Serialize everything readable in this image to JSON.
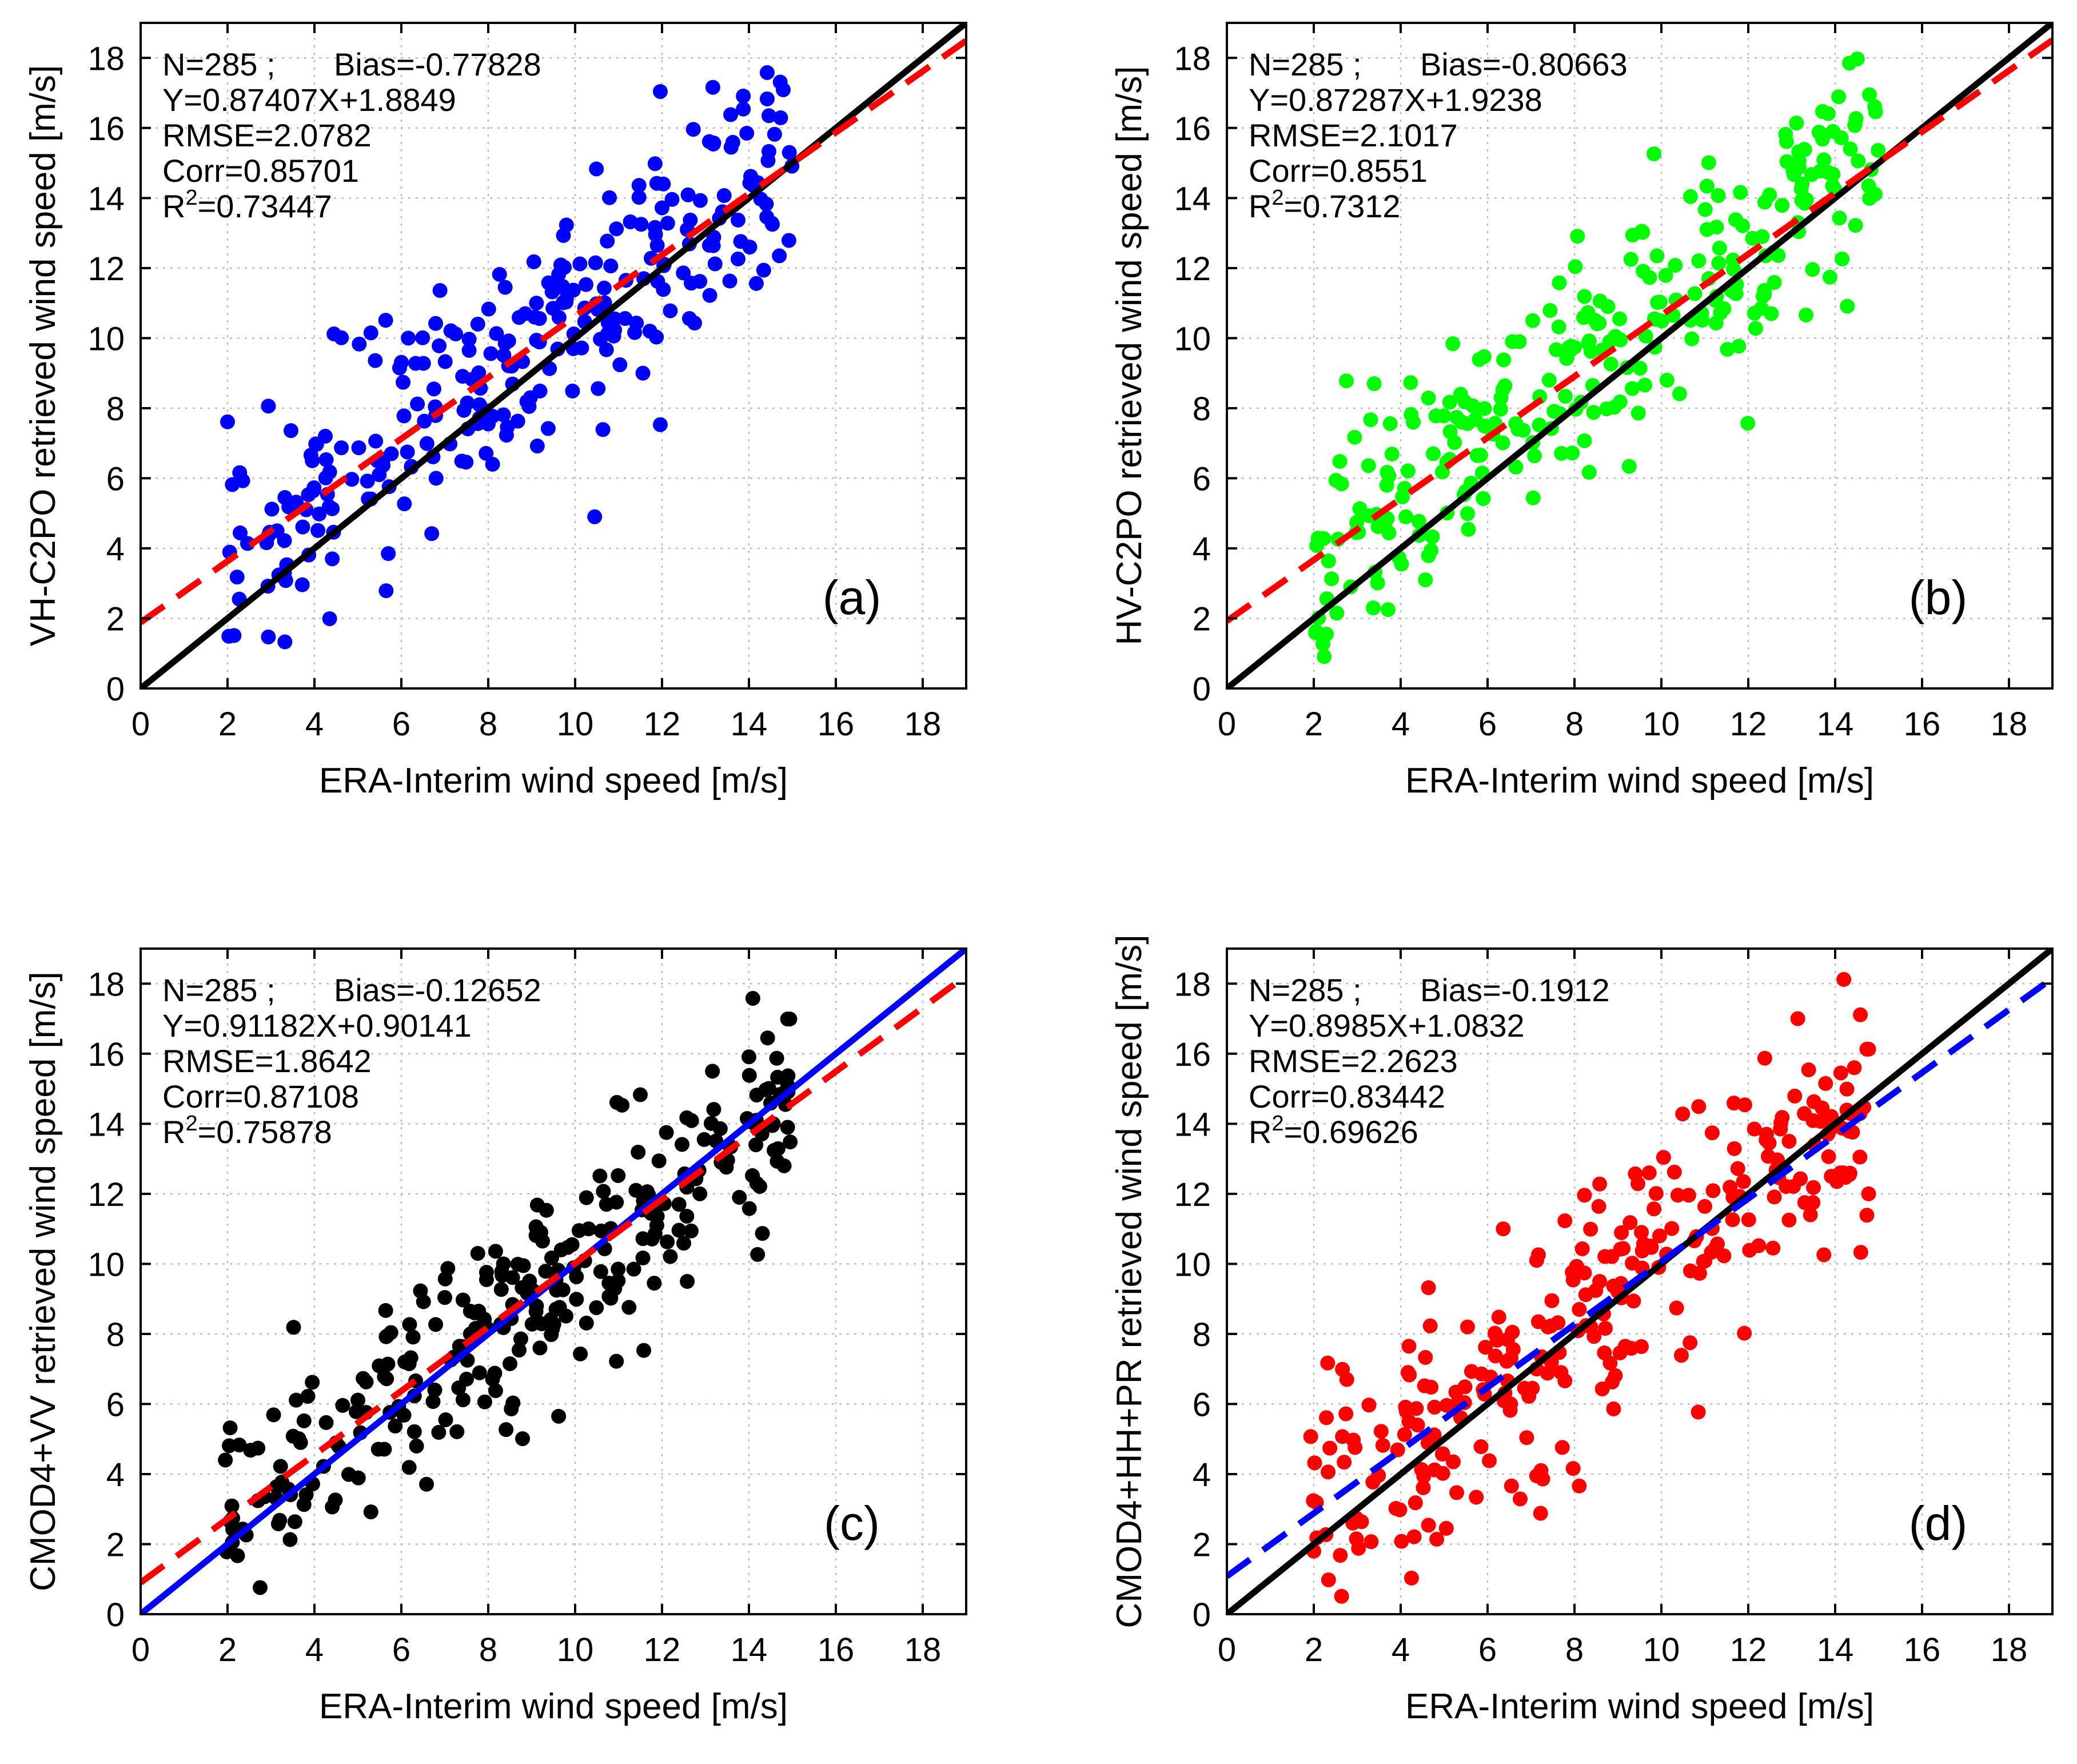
{
  "figure": {
    "background": "#ffffff"
  },
  "chart_data": [
    {
      "id": "a",
      "type": "scatter",
      "panel_label": "(a)",
      "xlabel": "ERA-Interim wind speed [m/s]",
      "ylabel": "VH-C2PO retrieved wind speed [m/s]",
      "xlim": [
        0,
        19
      ],
      "ylim": [
        0,
        19
      ],
      "xticks": [
        0,
        2,
        4,
        6,
        8,
        10,
        12,
        14,
        16,
        18
      ],
      "yticks": [
        0,
        2,
        4,
        6,
        8,
        10,
        12,
        14,
        16,
        18
      ],
      "grid": true,
      "point_color": "#0000ff",
      "one_to_one_color": "#000000",
      "fit_line_color": "#ff0000",
      "fit": {
        "slope": 0.87407,
        "intercept": 1.8849
      },
      "stats": {
        "n": "N=285 ;",
        "bias": "Bias=-0.77828",
        "equation": "Y=0.87407X+1.8849",
        "rmse": "RMSE=2.0782",
        "corr": "Corr=0.85701",
        "r2_prefix": "R",
        "r2_sup": "2",
        "r2_value": "=0.73447"
      },
      "point_count": 285,
      "seed": 11,
      "x": [],
      "y": []
    },
    {
      "id": "b",
      "type": "scatter",
      "panel_label": "(b)",
      "xlabel": "ERA-Interim wind speed [m/s]",
      "ylabel": "HV-C2PO retrieved wind speed [m/s]",
      "xlim": [
        0,
        19
      ],
      "ylim": [
        0,
        19
      ],
      "xticks": [
        0,
        2,
        4,
        6,
        8,
        10,
        12,
        14,
        16,
        18
      ],
      "yticks": [
        0,
        2,
        4,
        6,
        8,
        10,
        12,
        14,
        16,
        18
      ],
      "grid": true,
      "point_color": "#00ff00",
      "one_to_one_color": "#000000",
      "fit_line_color": "#ff0000",
      "fit": {
        "slope": 0.87287,
        "intercept": 1.9238
      },
      "stats": {
        "n": "N=285 ;",
        "bias": "Bias=-0.80663",
        "equation": "Y=0.87287X+1.9238",
        "rmse": "RMSE=2.1017",
        "corr": "Corr=0.8551",
        "r2_prefix": "R",
        "r2_sup": "2",
        "r2_value": "=0.7312"
      },
      "point_count": 285,
      "seed": 23,
      "x": [],
      "y": []
    },
    {
      "id": "c",
      "type": "scatter",
      "panel_label": "(c)",
      "xlabel": "ERA-Interim wind speed [m/s]",
      "ylabel": "CMOD4+VV retrieved wind speed [m/s]",
      "xlim": [
        0,
        19
      ],
      "ylim": [
        0,
        19
      ],
      "xticks": [
        0,
        2,
        4,
        6,
        8,
        10,
        12,
        14,
        16,
        18
      ],
      "yticks": [
        0,
        2,
        4,
        6,
        8,
        10,
        12,
        14,
        16,
        18
      ],
      "grid": true,
      "point_color": "#000000",
      "one_to_one_color": "#0000ff",
      "fit_line_color": "#ff0000",
      "fit": {
        "slope": 0.91182,
        "intercept": 0.90141
      },
      "stats": {
        "n": "N=285 ;",
        "bias": "Bias=-0.12652",
        "equation": "Y=0.91182X+0.90141",
        "rmse": "RMSE=1.8642",
        "corr": "Corr=0.87108",
        "r2_prefix": "R",
        "r2_sup": "2",
        "r2_value": "=0.75878"
      },
      "point_count": 285,
      "seed": 37,
      "x": [],
      "y": []
    },
    {
      "id": "d",
      "type": "scatter",
      "panel_label": "(d)",
      "xlabel": "ERA-Interim wind speed [m/s]",
      "ylabel": "CMOD4+HH+PR retrieved wind speed [m/s]",
      "xlim": [
        0,
        19
      ],
      "ylim": [
        0,
        19
      ],
      "xticks": [
        0,
        2,
        4,
        6,
        8,
        10,
        12,
        14,
        16,
        18
      ],
      "yticks": [
        0,
        2,
        4,
        6,
        8,
        10,
        12,
        14,
        16,
        18
      ],
      "grid": true,
      "point_color": "#ff0000",
      "one_to_one_color": "#000000",
      "fit_line_color": "#0000ff",
      "fit": {
        "slope": 0.8985,
        "intercept": 1.0832
      },
      "stats": {
        "n": "N=285 ;",
        "bias": "Bias=-0.1912",
        "equation": "Y=0.8985X+1.0832",
        "rmse": "RMSE=2.2623",
        "corr": "Corr=0.83442",
        "r2_prefix": "R",
        "r2_sup": "2",
        "r2_value": "=0.69626"
      },
      "point_count": 285,
      "seed": 53,
      "x": [],
      "y": []
    }
  ]
}
